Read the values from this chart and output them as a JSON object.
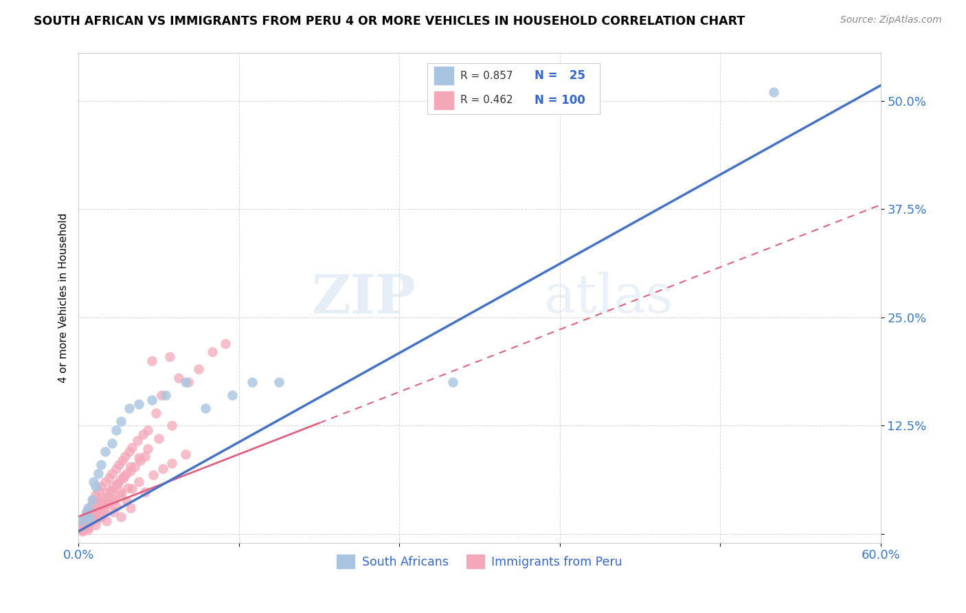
{
  "title": "SOUTH AFRICAN VS IMMIGRANTS FROM PERU 4 OR MORE VEHICLES IN HOUSEHOLD CORRELATION CHART",
  "source": "Source: ZipAtlas.com",
  "ylabel": "4 or more Vehicles in Household",
  "xlim": [
    0.0,
    0.6
  ],
  "ylim": [
    -0.01,
    0.555
  ],
  "xticks": [
    0.0,
    0.12,
    0.24,
    0.36,
    0.48,
    0.6
  ],
  "xticklabels": [
    "0.0%",
    "",
    "",
    "",
    "",
    "60.0%"
  ],
  "ytick_positions": [
    0.0,
    0.125,
    0.25,
    0.375,
    0.5
  ],
  "yticklabels": [
    "",
    "12.5%",
    "25.0%",
    "37.5%",
    "50.0%"
  ],
  "sa_R": 0.857,
  "sa_N": 25,
  "peru_R": 0.462,
  "peru_N": 100,
  "sa_color": "#a8c4e0",
  "peru_color": "#f4a7b9",
  "sa_line_color": "#4472c4",
  "peru_line_color": "#e06080",
  "watermark_zip": "ZIP",
  "watermark_atlas": "atlas",
  "sa_scatter_x": [
    0.003,
    0.005,
    0.006,
    0.007,
    0.008,
    0.01,
    0.011,
    0.013,
    0.015,
    0.017,
    0.02,
    0.025,
    0.028,
    0.032,
    0.038,
    0.045,
    0.055,
    0.065,
    0.08,
    0.095,
    0.115,
    0.13,
    0.15,
    0.28,
    0.52
  ],
  "sa_scatter_y": [
    0.015,
    0.02,
    0.025,
    0.03,
    0.018,
    0.04,
    0.06,
    0.055,
    0.07,
    0.08,
    0.095,
    0.105,
    0.12,
    0.13,
    0.145,
    0.15,
    0.155,
    0.16,
    0.175,
    0.145,
    0.16,
    0.175,
    0.175,
    0.175,
    0.51
  ],
  "peru_scatter_x": [
    0.002,
    0.003,
    0.004,
    0.005,
    0.006,
    0.007,
    0.008,
    0.009,
    0.01,
    0.011,
    0.012,
    0.013,
    0.014,
    0.015,
    0.016,
    0.017,
    0.018,
    0.019,
    0.02,
    0.021,
    0.022,
    0.023,
    0.024,
    0.025,
    0.026,
    0.027,
    0.028,
    0.029,
    0.03,
    0.031,
    0.032,
    0.033,
    0.034,
    0.035,
    0.036,
    0.037,
    0.038,
    0.039,
    0.04,
    0.042,
    0.044,
    0.046,
    0.048,
    0.05,
    0.052,
    0.055,
    0.058,
    0.062,
    0.068,
    0.075,
    0.082,
    0.09,
    0.1,
    0.11,
    0.003,
    0.005,
    0.007,
    0.009,
    0.011,
    0.013,
    0.015,
    0.017,
    0.019,
    0.022,
    0.025,
    0.028,
    0.032,
    0.036,
    0.04,
    0.045,
    0.05,
    0.056,
    0.063,
    0.07,
    0.08,
    0.003,
    0.006,
    0.009,
    0.012,
    0.015,
    0.018,
    0.021,
    0.025,
    0.029,
    0.034,
    0.039,
    0.045,
    0.052,
    0.06,
    0.07,
    0.003,
    0.005,
    0.007,
    0.01,
    0.013,
    0.017,
    0.021,
    0.026,
    0.032,
    0.039
  ],
  "peru_scatter_y": [
    0.01,
    0.015,
    0.012,
    0.018,
    0.025,
    0.02,
    0.03,
    0.022,
    0.035,
    0.04,
    0.028,
    0.045,
    0.035,
    0.05,
    0.038,
    0.055,
    0.042,
    0.028,
    0.06,
    0.048,
    0.035,
    0.065,
    0.05,
    0.07,
    0.055,
    0.04,
    0.075,
    0.058,
    0.08,
    0.063,
    0.048,
    0.085,
    0.065,
    0.09,
    0.07,
    0.053,
    0.095,
    0.073,
    0.1,
    0.078,
    0.108,
    0.085,
    0.115,
    0.09,
    0.12,
    0.2,
    0.14,
    0.16,
    0.205,
    0.18,
    0.175,
    0.19,
    0.21,
    0.22,
    0.005,
    0.01,
    0.008,
    0.015,
    0.02,
    0.025,
    0.018,
    0.03,
    0.025,
    0.035,
    0.04,
    0.032,
    0.045,
    0.038,
    0.052,
    0.06,
    0.048,
    0.068,
    0.075,
    0.082,
    0.092,
    0.005,
    0.012,
    0.018,
    0.022,
    0.028,
    0.035,
    0.042,
    0.05,
    0.058,
    0.067,
    0.078,
    0.088,
    0.098,
    0.11,
    0.125,
    0.003,
    0.008,
    0.005,
    0.015,
    0.01,
    0.02,
    0.015,
    0.025,
    0.02,
    0.03
  ]
}
